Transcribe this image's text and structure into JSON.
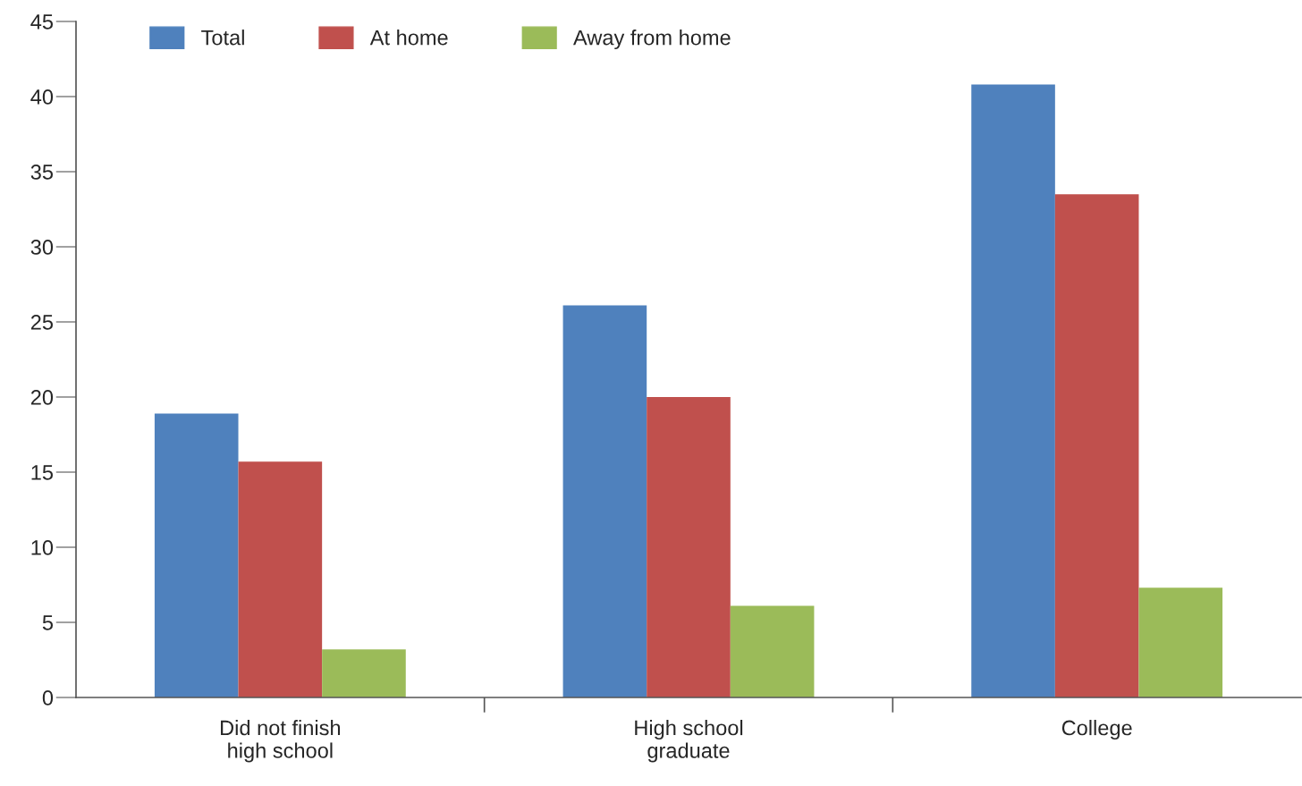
{
  "chart_data": {
    "type": "bar",
    "categories": [
      "Did not finish\nhigh school",
      "High school\ngraduate",
      "College"
    ],
    "series": [
      {
        "name": "Total",
        "color": "#4f81bd",
        "values": [
          18.9,
          26.1,
          40.8
        ]
      },
      {
        "name": "At home",
        "color": "#c0504d",
        "values": [
          15.7,
          20.0,
          33.5
        ]
      },
      {
        "name": "Away from home",
        "color": "#9bbb59",
        "values": [
          3.2,
          6.1,
          7.3
        ]
      }
    ],
    "ylim": [
      0,
      45
    ],
    "yticks": [
      0,
      5,
      10,
      15,
      20,
      25,
      30,
      35,
      40,
      45
    ],
    "grid": false,
    "legend": "top left"
  }
}
